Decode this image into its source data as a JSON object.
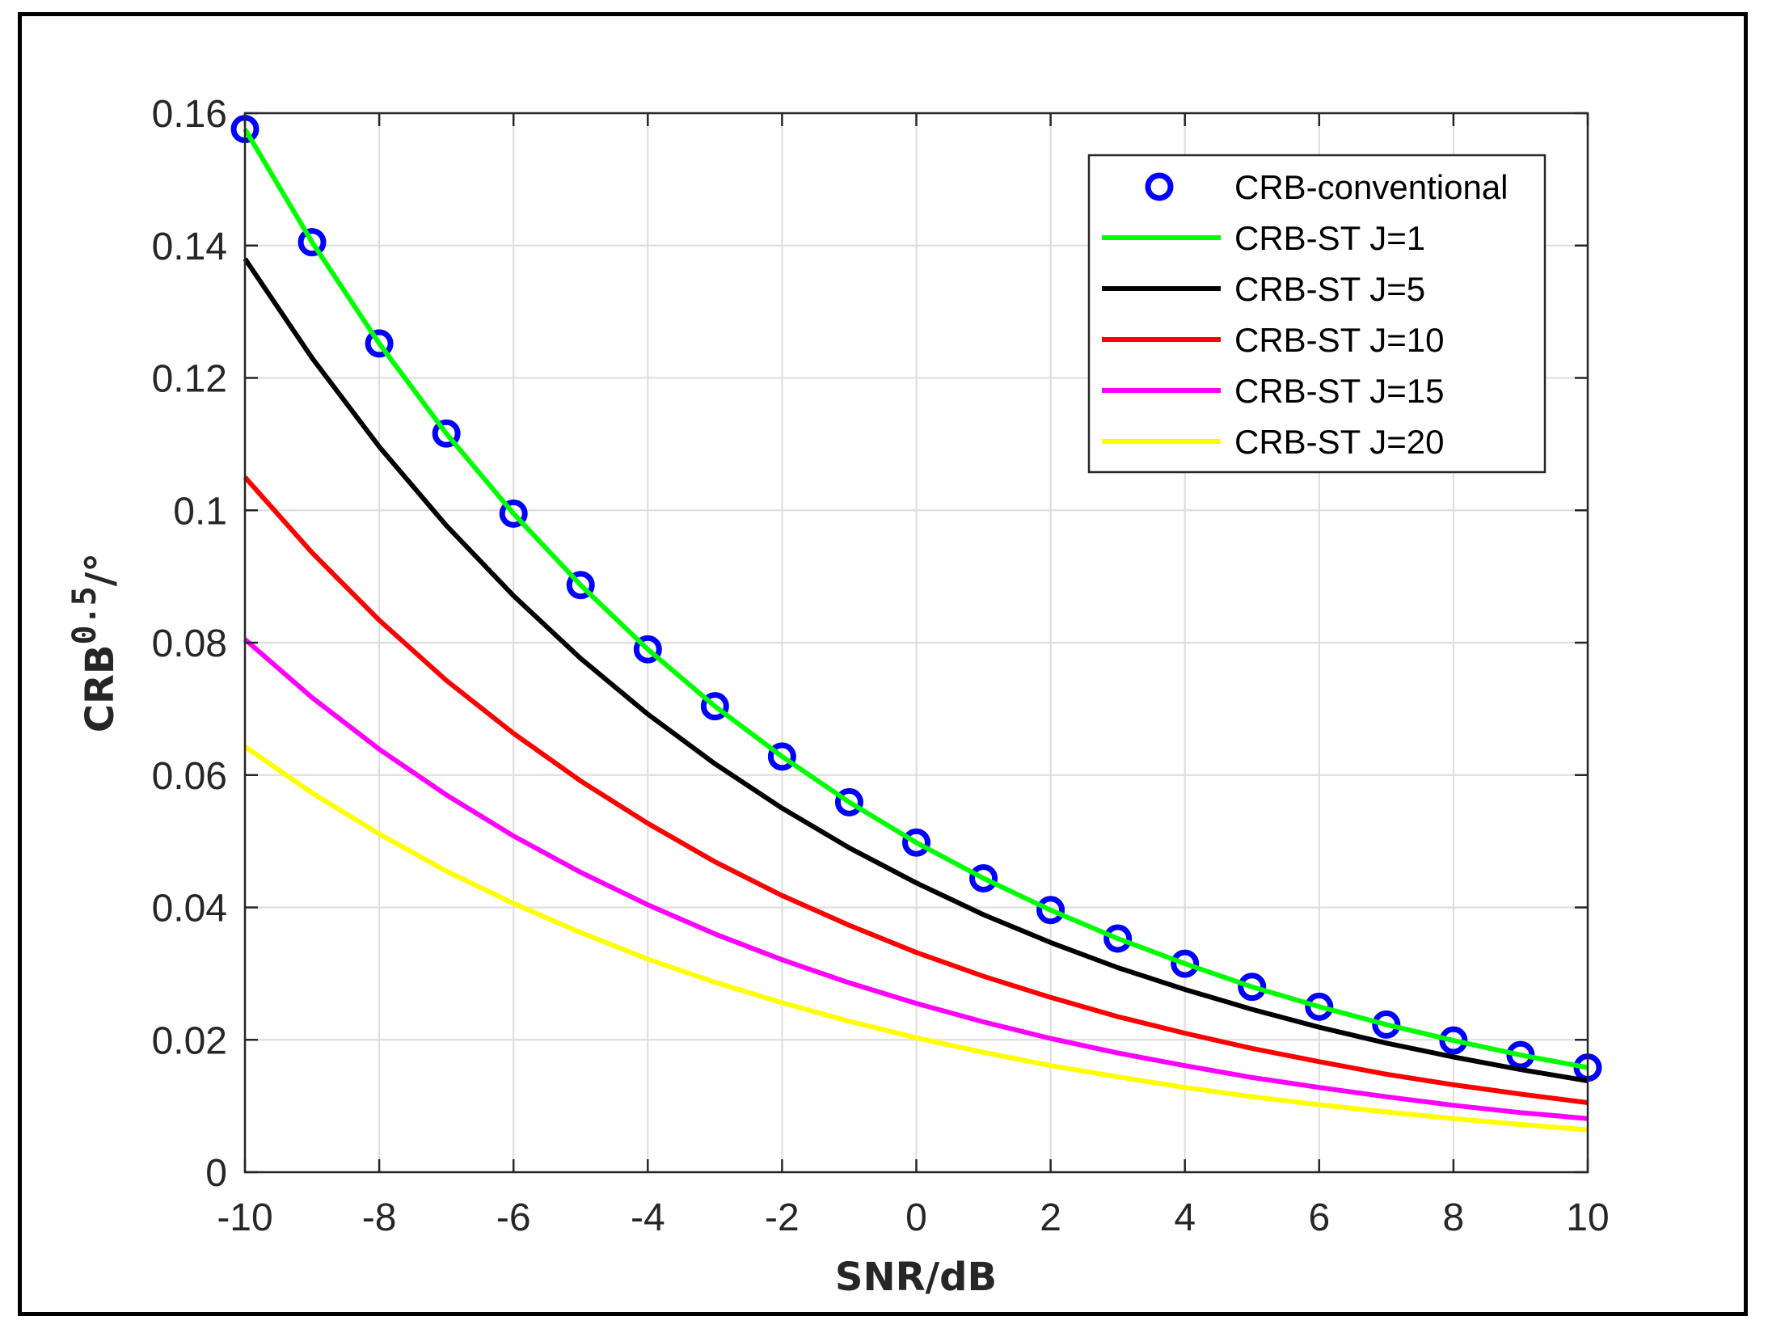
{
  "chart_data": {
    "type": "line",
    "title": "",
    "xlabel": "SNR/dB",
    "ylabel": "CRB",
    "ylabel_superscript": "0.5",
    "ylabel_unit": "/°",
    "xlim": [
      -10,
      10
    ],
    "ylim": [
      0,
      0.16
    ],
    "xticks": [
      "-10",
      "-8",
      "-6",
      "-4",
      "-2",
      "0",
      "2",
      "4",
      "6",
      "8",
      "10"
    ],
    "yticks": [
      "0",
      "0.02",
      "0.04",
      "0.06",
      "0.08",
      "0.1",
      "0.12",
      "0.14",
      "0.16"
    ],
    "grid": true,
    "legend_position": "top-right",
    "x": [
      -10,
      -9,
      -8,
      -7,
      -6,
      -5,
      -4,
      -3,
      -2,
      -1,
      0,
      1,
      2,
      3,
      4,
      5,
      6,
      7,
      8,
      9,
      10
    ],
    "series": [
      {
        "name": "CRB-conventional",
        "style": "marker",
        "color": "#0000ff",
        "values": [
          0.1576,
          0.1405,
          0.1252,
          0.1116,
          0.0995,
          0.0887,
          0.079,
          0.0704,
          0.0628,
          0.0559,
          0.0498,
          0.0444,
          0.0396,
          0.0353,
          0.0315,
          0.028,
          0.025,
          0.0223,
          0.0199,
          0.0177,
          0.0158
        ]
      },
      {
        "name": "CRB-ST J=1",
        "style": "line",
        "color": "#00ff00",
        "values": [
          0.1576,
          0.1405,
          0.1252,
          0.1116,
          0.0995,
          0.0887,
          0.079,
          0.0704,
          0.0628,
          0.0559,
          0.0498,
          0.0444,
          0.0396,
          0.0353,
          0.0315,
          0.028,
          0.025,
          0.0223,
          0.0199,
          0.0177,
          0.0158
        ]
      },
      {
        "name": "CRB-ST J=5",
        "style": "line",
        "color": "#000000",
        "values": [
          0.138,
          0.123,
          0.1096,
          0.0977,
          0.0871,
          0.0776,
          0.0692,
          0.0617,
          0.055,
          0.049,
          0.0437,
          0.0389,
          0.0347,
          0.0309,
          0.0276,
          0.0246,
          0.0219,
          0.0195,
          0.0174,
          0.0155,
          0.0138
        ]
      },
      {
        "name": "CRB-ST J=10",
        "style": "line",
        "color": "#ff0000",
        "values": [
          0.105,
          0.0936,
          0.0834,
          0.0743,
          0.0663,
          0.0591,
          0.0527,
          0.0469,
          0.0418,
          0.0373,
          0.0332,
          0.0296,
          0.0264,
          0.0235,
          0.021,
          0.0187,
          0.0167,
          0.0148,
          0.0132,
          0.0118,
          0.0105
        ]
      },
      {
        "name": "CRB-ST J=15",
        "style": "line",
        "color": "#ff00ff",
        "values": [
          0.0805,
          0.0717,
          0.0639,
          0.057,
          0.0508,
          0.0453,
          0.0404,
          0.036,
          0.0321,
          0.0286,
          0.0255,
          0.0227,
          0.0202,
          0.018,
          0.0161,
          0.0143,
          0.0128,
          0.0114,
          0.0101,
          0.009,
          0.0081
        ]
      },
      {
        "name": "CRB-ST J=20",
        "style": "line",
        "color": "#ffff00",
        "values": [
          0.0643,
          0.0573,
          0.0511,
          0.0455,
          0.0406,
          0.0362,
          0.0322,
          0.0287,
          0.0256,
          0.0228,
          0.0203,
          0.0181,
          0.0161,
          0.0144,
          0.0128,
          0.0114,
          0.0102,
          0.0091,
          0.0081,
          0.0072,
          0.0064
        ]
      }
    ]
  }
}
